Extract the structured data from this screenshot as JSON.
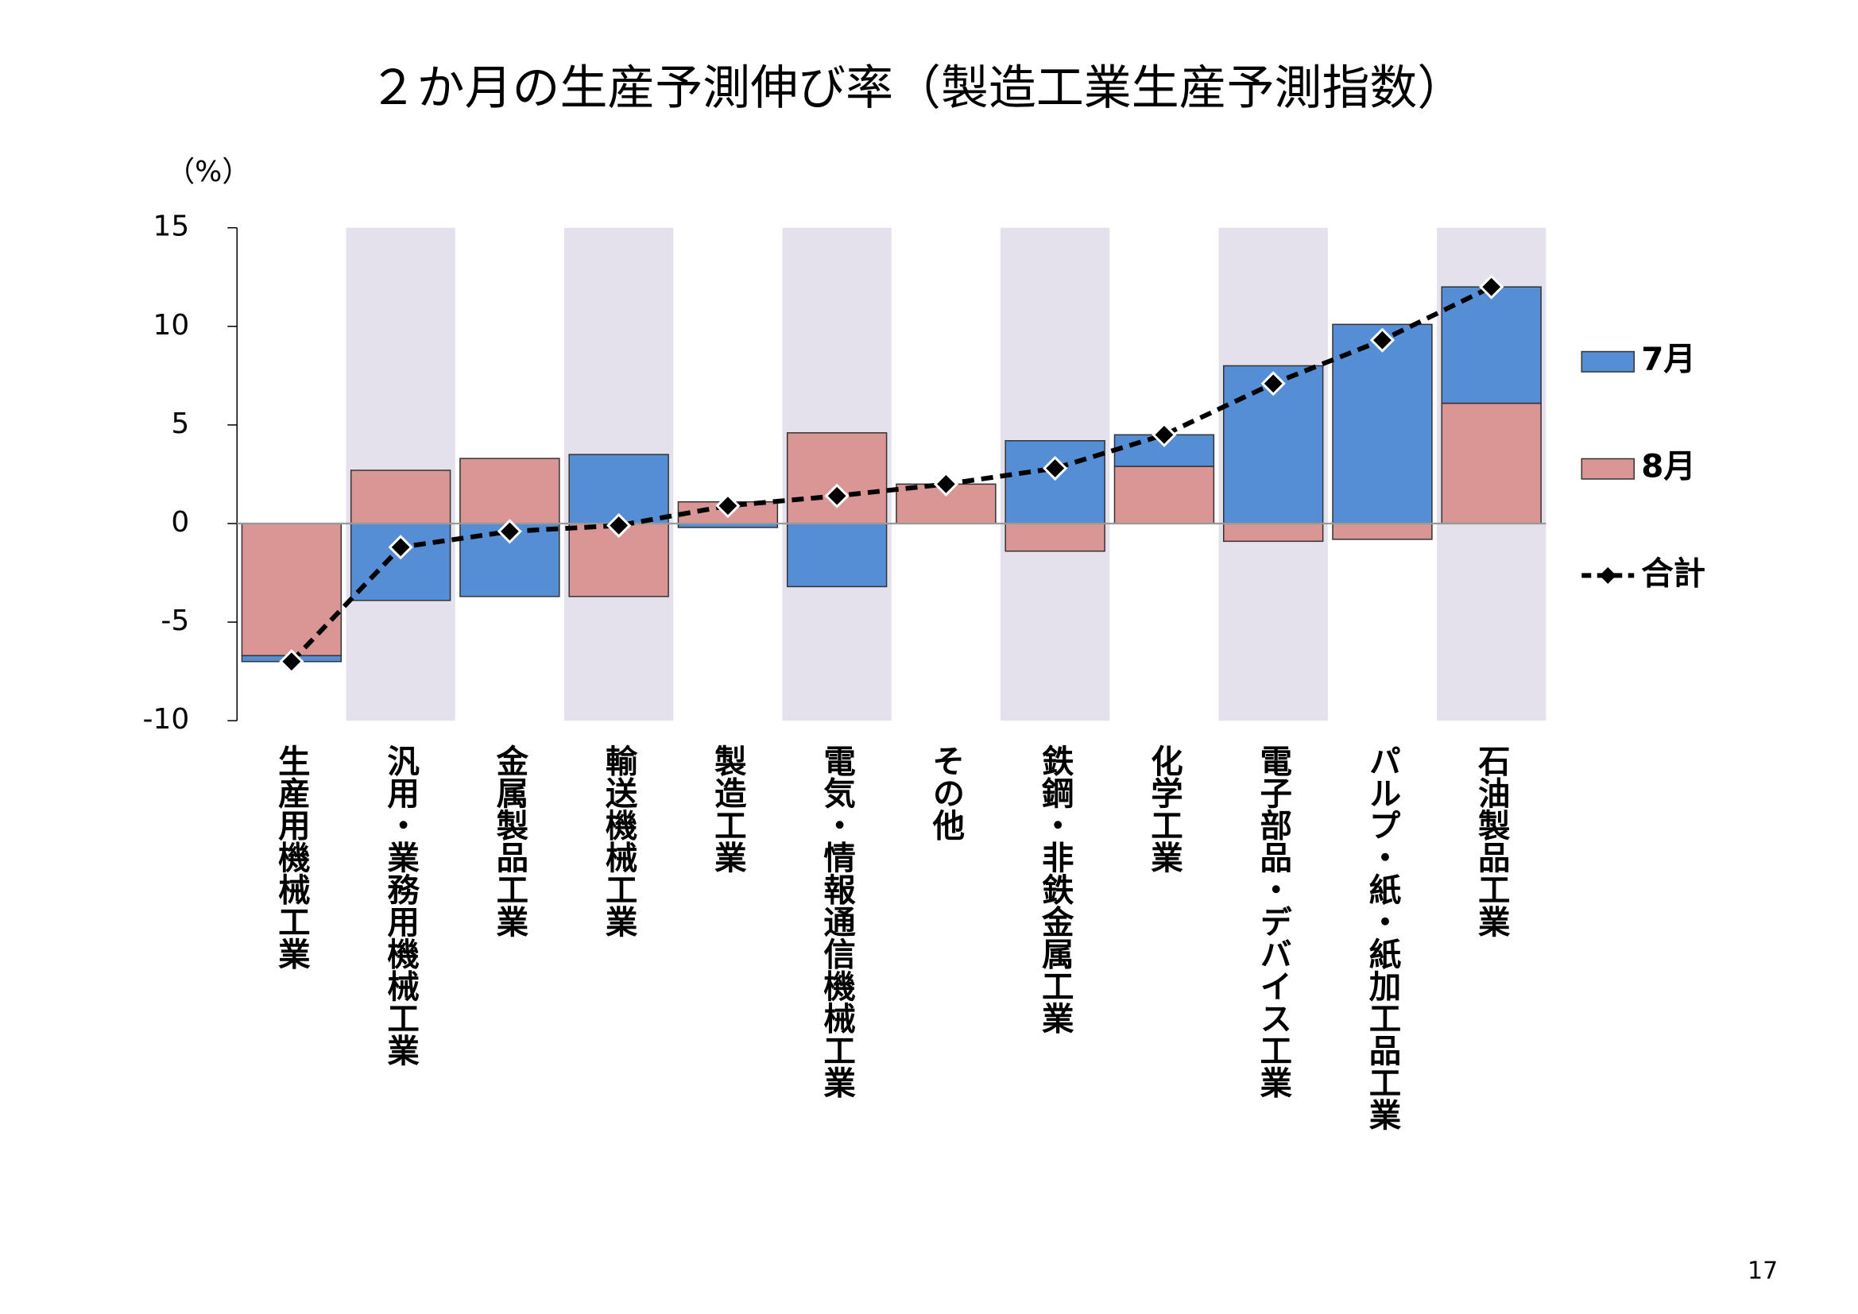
{
  "chart_data": {
    "type": "bar",
    "stacked": true,
    "title": "２か月の生産予測伸び率（製造工業生産予測指数）",
    "y_unit": "（%）",
    "categories": [
      "生産用機械工業",
      "汎用・業務用機械工業",
      "金属製品工業",
      "輸送機械工業",
      "製造工業",
      "電気・情報通信機械工業",
      "その他",
      "鉄鋼・非鉄金属工業",
      "化学工業",
      "電子部品・デバイス工業",
      "パルプ・紙・紙加工品工業",
      "石油製品工業"
    ],
    "series": [
      {
        "name": "7月",
        "type": "bar",
        "color": "#558ed5",
        "values": [
          -0.3,
          -3.9,
          -3.7,
          3.5,
          -0.2,
          -3.2,
          0,
          4.2,
          1.6,
          8.0,
          10.1,
          5.9
        ]
      },
      {
        "name": "8月",
        "type": "bar",
        "color": "#d99694",
        "values": [
          -6.7,
          2.7,
          3.3,
          -3.7,
          1.1,
          4.6,
          2.0,
          -1.4,
          2.9,
          -0.9,
          -0.8,
          6.1
        ]
      },
      {
        "name": "合計",
        "type": "line",
        "color": "#000000",
        "values": [
          -7.0,
          -1.2,
          -0.4,
          -0.1,
          0.9,
          1.4,
          2.0,
          2.8,
          4.5,
          7.1,
          9.3,
          12.0
        ]
      }
    ],
    "ylim": [
      -10,
      15
    ],
    "yticks": [
      15,
      10,
      5,
      0,
      -5,
      -10
    ],
    "band_color": "#e4e0ec",
    "legend": "right"
  },
  "page_number": "17"
}
